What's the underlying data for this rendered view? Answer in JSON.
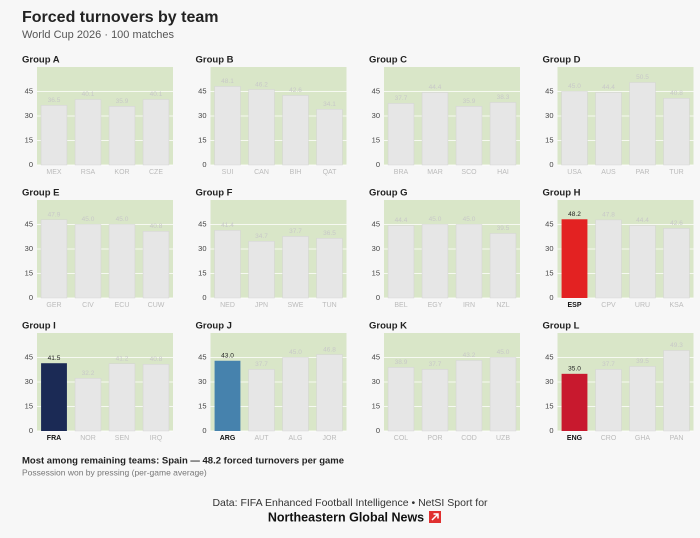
{
  "title": "Forced turnovers by team",
  "subtitle": "World Cup 2026 · 100 matches",
  "note": "Most among remaining teams: Spain — 48.2 forced turnovers per game",
  "note_sub": "Possession won by pressing (per-game average)",
  "source": "Data: FIFA Enhanced Football Intelligence  •  NetSI Sport for",
  "brand": "Northeastern Global News",
  "chart_data": [
    {
      "type": "bar",
      "title": "Group A",
      "categories": [
        "MEX",
        "RSA",
        "KOR",
        "CZE"
      ],
      "values": [
        36.5,
        40.1,
        35.9,
        40.1
      ],
      "value_labels": [
        "36.5",
        "40.1",
        "35.9",
        "40.1"
      ],
      "color": "#e6e6e6",
      "colors": [
        "#e6e6e6",
        "#e6e6e6",
        "#e6e6e6",
        "#e6e6e6"
      ],
      "ylim": [
        0,
        60
      ],
      "yticks": [
        0,
        15,
        30,
        45
      ]
    },
    {
      "type": "bar",
      "title": "Group B",
      "categories": [
        "SUI",
        "CAN",
        "BIH",
        "QAT"
      ],
      "values": [
        48.1,
        46.2,
        42.6,
        34.1
      ],
      "value_labels": [
        "48.1",
        "46.2",
        "42.6",
        "34.1"
      ],
      "color": "#e6e6e6",
      "colors": [
        "#e6e6e6",
        "#e6e6e6",
        "#e6e6e6",
        "#e6e6e6"
      ],
      "ylim": [
        0,
        60
      ],
      "yticks": [
        0,
        15,
        30,
        45
      ]
    },
    {
      "type": "bar",
      "title": "Group C",
      "categories": [
        "BRA",
        "MAR",
        "SCO",
        "HAI"
      ],
      "values": [
        37.7,
        44.4,
        35.9,
        38.3
      ],
      "value_labels": [
        "37.7",
        "44.4",
        "35.9",
        "38.3"
      ],
      "color": "#e6e6e6",
      "colors": [
        "#e6e6e6",
        "#e6e6e6",
        "#e6e6e6",
        "#e6e6e6"
      ],
      "ylim": [
        0,
        60
      ],
      "yticks": [
        0,
        15,
        30,
        45
      ]
    },
    {
      "type": "bar",
      "title": "Group D",
      "categories": [
        "USA",
        "AUS",
        "PAR",
        "TUR"
      ],
      "values": [
        45.0,
        44.4,
        50.5,
        40.8
      ],
      "value_labels": [
        "45.0",
        "44.4",
        "50.5",
        "40.8"
      ],
      "color": "#e6e6e6",
      "colors": [
        "#e6e6e6",
        "#e6e6e6",
        "#e6e6e6",
        "#e6e6e6"
      ],
      "ylim": [
        0,
        60
      ],
      "yticks": [
        0,
        15,
        30,
        45
      ]
    },
    {
      "type": "bar",
      "title": "Group E",
      "categories": [
        "GER",
        "CIV",
        "ECU",
        "CUW"
      ],
      "values": [
        47.9,
        45.0,
        45.0,
        40.8
      ],
      "value_labels": [
        "47.9",
        "45.0",
        "45.0",
        "40.8"
      ],
      "color": "#e6e6e6",
      "colors": [
        "#e6e6e6",
        "#e6e6e6",
        "#e6e6e6",
        "#e6e6e6"
      ],
      "ylim": [
        0,
        60
      ],
      "yticks": [
        0,
        15,
        30,
        45
      ]
    },
    {
      "type": "bar",
      "title": "Group F",
      "categories": [
        "NED",
        "JPN",
        "SWE",
        "TUN"
      ],
      "values": [
        41.4,
        34.7,
        37.7,
        36.5
      ],
      "value_labels": [
        "41.4",
        "34.7",
        "37.7",
        "36.5"
      ],
      "color": "#e6e6e6",
      "colors": [
        "#e6e6e6",
        "#e6e6e6",
        "#e6e6e6",
        "#e6e6e6"
      ],
      "ylim": [
        0,
        60
      ],
      "yticks": [
        0,
        15,
        30,
        45
      ]
    },
    {
      "type": "bar",
      "title": "Group G",
      "categories": [
        "BEL",
        "EGY",
        "IRN",
        "NZL"
      ],
      "values": [
        44.4,
        45.0,
        45.0,
        39.5
      ],
      "value_labels": [
        "44.4",
        "45.0",
        "45.0",
        "39.5"
      ],
      "color": "#e6e6e6",
      "colors": [
        "#e6e6e6",
        "#e6e6e6",
        "#e6e6e6",
        "#e6e6e6"
      ],
      "ylim": [
        0,
        60
      ],
      "yticks": [
        0,
        15,
        30,
        45
      ]
    },
    {
      "type": "bar",
      "title": "Group H",
      "categories": [
        "ESP",
        "CPV",
        "URU",
        "KSA"
      ],
      "values": [
        48.2,
        47.8,
        44.4,
        42.6
      ],
      "value_labels": [
        "48.2",
        "47.8",
        "44.4",
        "42.6"
      ],
      "color": "#e6e6e6",
      "colors": [
        "#e32222",
        "#e6e6e6",
        "#e6e6e6",
        "#e6e6e6"
      ],
      "ylim": [
        0,
        60
      ],
      "yticks": [
        0,
        15,
        30,
        45
      ]
    },
    {
      "type": "bar",
      "title": "Group I",
      "categories": [
        "FRA",
        "NOR",
        "SEN",
        "IRQ"
      ],
      "values": [
        41.5,
        32.2,
        41.2,
        40.8
      ],
      "value_labels": [
        "41.5",
        "32.2",
        "41.2",
        "40.8"
      ],
      "color": "#e6e6e6",
      "colors": [
        "#1b2a55",
        "#e6e6e6",
        "#e6e6e6",
        "#e6e6e6"
      ],
      "ylim": [
        0,
        60
      ],
      "yticks": [
        0,
        15,
        30,
        45
      ]
    },
    {
      "type": "bar",
      "title": "Group J",
      "categories": [
        "ARG",
        "AUT",
        "ALG",
        "JOR"
      ],
      "values": [
        43.0,
        37.7,
        45.0,
        46.8
      ],
      "value_labels": [
        "43.0",
        "37.7",
        "45.0",
        "46.8"
      ],
      "color": "#e6e6e6",
      "colors": [
        "#4682ad",
        "#e6e6e6",
        "#e6e6e6",
        "#e6e6e6"
      ],
      "ylim": [
        0,
        60
      ],
      "yticks": [
        0,
        15,
        30,
        45
      ]
    },
    {
      "type": "bar",
      "title": "Group K",
      "categories": [
        "COL",
        "POR",
        "COD",
        "UZB"
      ],
      "values": [
        38.9,
        37.7,
        43.2,
        45.0
      ],
      "value_labels": [
        "38.9",
        "37.7",
        "43.2",
        "45.0"
      ],
      "color": "#e6e6e6",
      "colors": [
        "#e6e6e6",
        "#e6e6e6",
        "#e6e6e6",
        "#e6e6e6"
      ],
      "ylim": [
        0,
        60
      ],
      "yticks": [
        0,
        15,
        30,
        45
      ]
    },
    {
      "type": "bar",
      "title": "Group L",
      "categories": [
        "ENG",
        "CRO",
        "GHA",
        "PAN"
      ],
      "values": [
        35.0,
        37.7,
        39.5,
        49.3
      ],
      "value_labels": [
        "35.0",
        "37.7",
        "39.5",
        "49.3"
      ],
      "color": "#e6e6e6",
      "colors": [
        "#c8192e",
        "#e6e6e6",
        "#e6e6e6",
        "#e6e6e6"
      ],
      "ylim": [
        0,
        60
      ],
      "yticks": [
        0,
        15,
        30,
        45
      ]
    }
  ]
}
